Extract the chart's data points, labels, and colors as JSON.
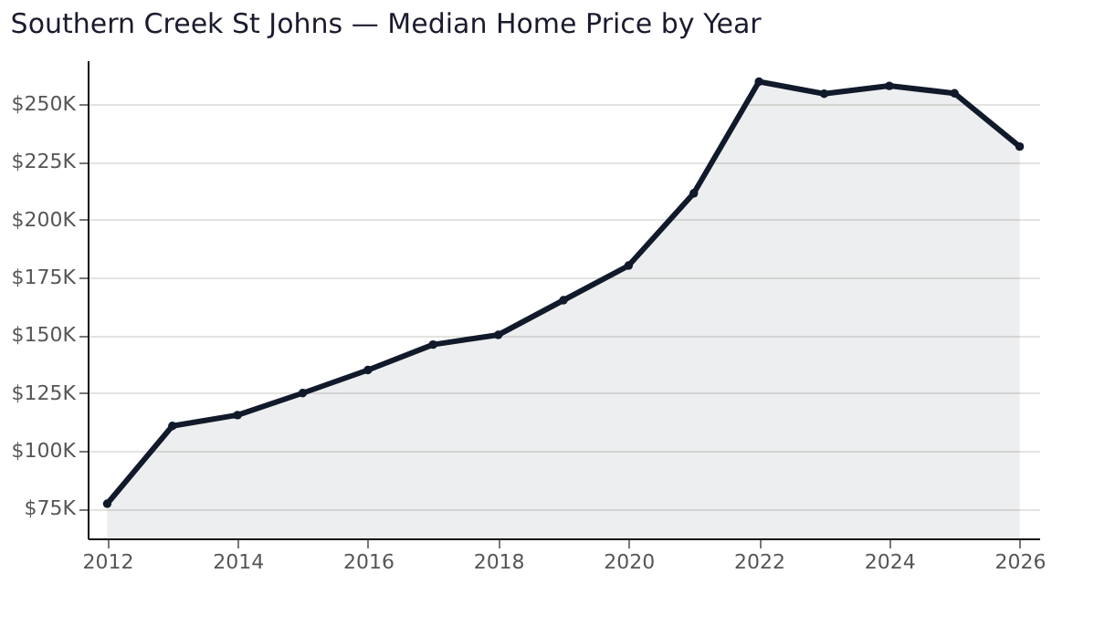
{
  "chart_data": {
    "type": "area",
    "title": "Southern Creek St Johns — Median Home Price by Year",
    "x": [
      2012,
      2013,
      2014,
      2015,
      2016,
      2017,
      2018,
      2019,
      2020,
      2021,
      2022,
      2023,
      2024,
      2025,
      2026
    ],
    "series": [
      {
        "color": "#111a2b",
        "values": [
          77000,
          110700,
          115400,
          124900,
          134900,
          145900,
          150100,
          165100,
          180100,
          211400,
          259700,
          254500,
          257900,
          254700,
          231600
        ]
      }
    ],
    "xlim": [
      2011.7,
      2026.3
    ],
    "xticks": [
      2012,
      2014,
      2016,
      2018,
      2020,
      2022,
      2024,
      2026
    ],
    "ylim": [
      62000,
      269000
    ],
    "yticks": [
      {
        "value": 75000,
        "label": "$75K"
      },
      {
        "value": 100000,
        "label": "$100K"
      },
      {
        "value": 125000,
        "label": "$125K"
      },
      {
        "value": 150000,
        "label": "$150K"
      },
      {
        "value": 175000,
        "label": "$175K"
      },
      {
        "value": 200000,
        "label": "$200K"
      },
      {
        "value": 225000,
        "label": "$225K"
      },
      {
        "value": 250000,
        "label": "$250K"
      }
    ],
    "grid": "y",
    "marker": "circle",
    "line_style": "solid"
  }
}
